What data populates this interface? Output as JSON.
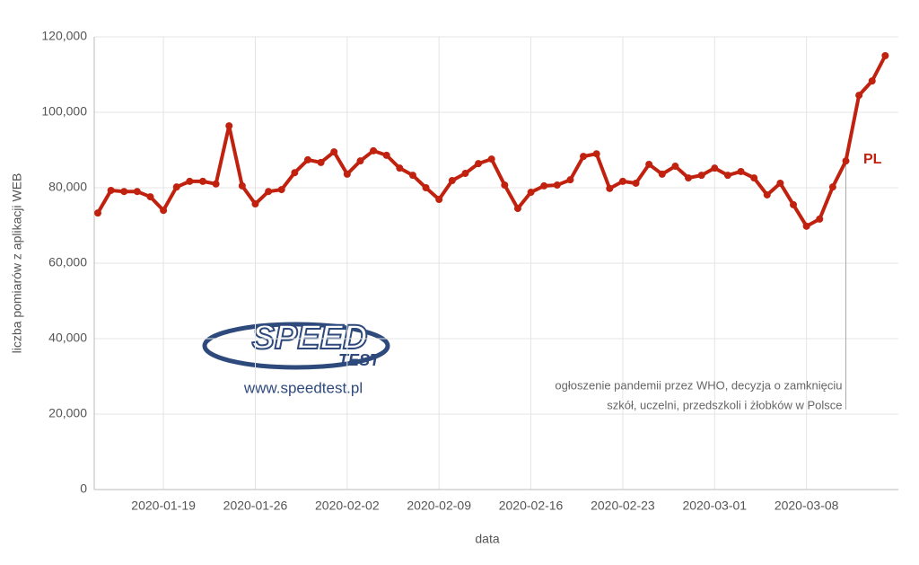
{
  "chart_data": {
    "type": "line",
    "x_label": "data",
    "y_label": "liczba pomiarów z aplikacji WEB",
    "x": [
      "2020-01-14",
      "2020-01-15",
      "2020-01-16",
      "2020-01-17",
      "2020-01-18",
      "2020-01-19",
      "2020-01-20",
      "2020-01-21",
      "2020-01-22",
      "2020-01-23",
      "2020-01-24",
      "2020-01-25",
      "2020-01-26",
      "2020-01-27",
      "2020-01-28",
      "2020-01-29",
      "2020-01-30",
      "2020-01-31",
      "2020-02-01",
      "2020-02-02",
      "2020-02-03",
      "2020-02-04",
      "2020-02-05",
      "2020-02-06",
      "2020-02-07",
      "2020-02-08",
      "2020-02-09",
      "2020-02-10",
      "2020-02-11",
      "2020-02-12",
      "2020-02-13",
      "2020-02-14",
      "2020-02-15",
      "2020-02-16",
      "2020-02-17",
      "2020-02-18",
      "2020-02-19",
      "2020-02-20",
      "2020-02-21",
      "2020-02-22",
      "2020-02-23",
      "2020-02-24",
      "2020-02-25",
      "2020-02-26",
      "2020-02-27",
      "2020-02-28",
      "2020-02-29",
      "2020-03-01",
      "2020-03-02",
      "2020-03-03",
      "2020-03-04",
      "2020-03-05",
      "2020-03-06",
      "2020-03-07",
      "2020-03-08",
      "2020-03-09",
      "2020-03-10",
      "2020-03-11",
      "2020-03-12",
      "2020-03-13",
      "2020-03-14"
    ],
    "series": [
      {
        "name": "PL",
        "color": "#c0220f",
        "values": [
          73300,
          79300,
          79000,
          79000,
          77600,
          74000,
          80200,
          81700,
          81700,
          81000,
          96400,
          80500,
          75700,
          79000,
          79500,
          84000,
          87400,
          86700,
          89500,
          83600,
          87100,
          89800,
          88600,
          85200,
          83300,
          80000,
          76900,
          81900,
          83800,
          86400,
          87600,
          80700,
          74500,
          78800,
          80500,
          80700,
          82100,
          88300,
          89000,
          79800,
          81700,
          81200,
          86200,
          83600,
          85700,
          82600,
          83300,
          85200,
          83300,
          84300,
          82600,
          78100,
          81200,
          75500,
          69800,
          71700,
          80200,
          87100,
          104500,
          108300,
          115000
        ]
      }
    ],
    "xlim": [
      "2020-01-14",
      "2020-03-15"
    ],
    "xticks": [
      "2020-01-19",
      "2020-01-26",
      "2020-02-02",
      "2020-02-09",
      "2020-02-16",
      "2020-02-23",
      "2020-03-01",
      "2020-03-08"
    ],
    "ylim": [
      0,
      120000
    ],
    "yticks": [
      0,
      {
        "value": 20000,
        "label": "20,000"
      },
      {
        "value": 40000,
        "label": "40,000"
      },
      {
        "value": 60000,
        "label": "60,000"
      },
      {
        "value": 80000,
        "label": "80,000"
      },
      {
        "value": 100000,
        "label": "100,000"
      },
      {
        "value": 120000,
        "label": "120,000"
      }
    ],
    "grid": true,
    "annotation": {
      "x": "2020-03-11",
      "lines": [
        "ogłoszenie pandemii przez WHO, decyzja o zamknięciu",
        "szkół, uczelni, przedszkoli i żłobków w Polsce"
      ]
    },
    "logo": {
      "top": "SPEED",
      "bottom": "TEST",
      "url": "www.speedtest.pl"
    }
  }
}
